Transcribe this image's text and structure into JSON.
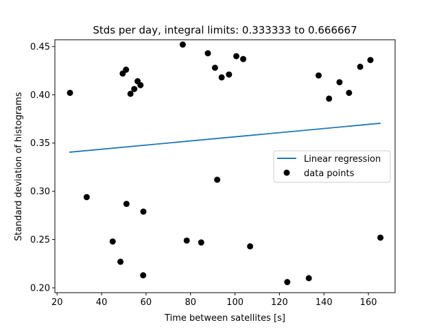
{
  "chart_data": {
    "type": "scatter",
    "title": "Stds per day, integral limits: 0.333333 to 0.666667",
    "xlabel": "Time between satellites [s]",
    "ylabel": "Standard deviation of histograms",
    "xlim": [
      19,
      172
    ],
    "ylim": [
      0.195,
      0.457
    ],
    "xticks": [
      20,
      40,
      60,
      80,
      100,
      120,
      140,
      160
    ],
    "yticks": [
      0.2,
      0.25,
      0.3,
      0.35,
      0.4,
      0.45
    ],
    "xtick_labels": [
      "20",
      "40",
      "60",
      "80",
      "100",
      "120",
      "140",
      "160"
    ],
    "ytick_labels": [
      "0.20",
      "0.25",
      "0.30",
      "0.35",
      "0.40",
      "0.45"
    ],
    "grid": false,
    "legend": {
      "placement": "center-right",
      "entries": [
        {
          "label": "Linear regression",
          "kind": "line",
          "color": "#1f77b4"
        },
        {
          "label": "data points",
          "kind": "marker",
          "color": "#000000"
        }
      ]
    },
    "series": [
      {
        "name": "data points",
        "kind": "scatter",
        "color": "#000000",
        "x": [
          25.8,
          33.3,
          45.0,
          48.5,
          49.5,
          51.0,
          51.2,
          53.0,
          54.7,
          56.2,
          57.5,
          58.7,
          58.8,
          76.5,
          78.3,
          84.8,
          87.8,
          91.0,
          92.0,
          94.0,
          97.3,
          100.6,
          103.7,
          106.8,
          123.5,
          133.2,
          137.6,
          142.3,
          147.0,
          151.3,
          156.3,
          160.9,
          165.4
        ],
        "y": [
          0.402,
          0.294,
          0.248,
          0.227,
          0.422,
          0.426,
          0.287,
          0.401,
          0.406,
          0.414,
          0.41,
          0.213,
          0.279,
          0.452,
          0.249,
          0.247,
          0.443,
          0.428,
          0.312,
          0.418,
          0.421,
          0.44,
          0.437,
          0.243,
          0.206,
          0.21,
          0.42,
          0.396,
          0.413,
          0.402,
          0.429,
          0.436,
          0.252
        ]
      },
      {
        "name": "Linear regression",
        "kind": "line",
        "color": "#1f77b4",
        "x": [
          25.5,
          165.5
        ],
        "y": [
          0.3405,
          0.3705
        ]
      }
    ]
  }
}
